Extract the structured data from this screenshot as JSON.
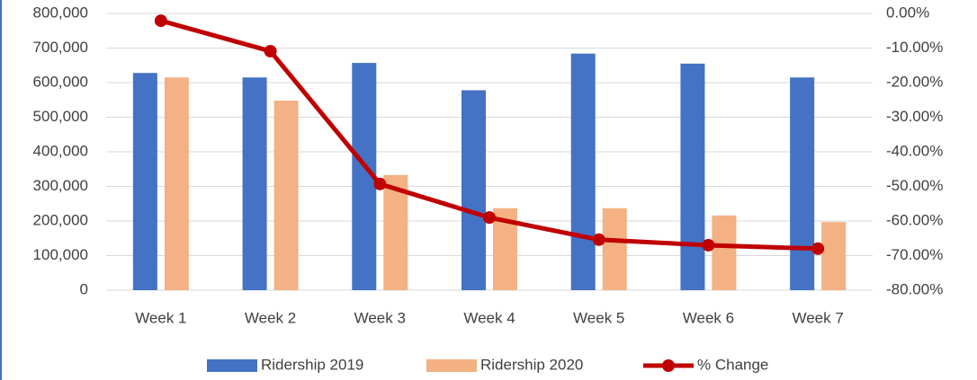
{
  "chart_data": {
    "type": "bar",
    "categories": [
      "Week 1",
      "Week 2",
      "Week 3",
      "Week 4",
      "Week 5",
      "Week 6",
      "Week 7"
    ],
    "series": [
      {
        "name": "Ridership 2019",
        "type": "bar",
        "color": "#4472c4",
        "values": [
          628000,
          615000,
          657000,
          578000,
          684000,
          655000,
          615000
        ]
      },
      {
        "name": "Ridership 2020",
        "type": "bar",
        "color": "#f4b183",
        "values": [
          615000,
          548000,
          333000,
          237000,
          237000,
          216000,
          197000
        ]
      },
      {
        "name": "% Change",
        "type": "line",
        "axis": "y2",
        "color": "#c00000",
        "values": [
          -2.1,
          -10.9,
          -49.3,
          -59.0,
          -65.4,
          -67.0,
          -68.0
        ]
      }
    ],
    "ylim": [
      0,
      800000
    ],
    "yticks": [
      0,
      {
        "value": 100000,
        "label": "100,000"
      },
      {
        "value": 200000,
        "label": "200,000"
      },
      {
        "value": 300000,
        "label": "300,000"
      },
      {
        "value": 400000,
        "label": "400,000"
      },
      {
        "value": 500000,
        "label": "500,000"
      },
      {
        "value": 600000,
        "label": "600,000"
      },
      {
        "value": 700000,
        "label": "700,000"
      },
      {
        "value": 800000,
        "label": "800,000"
      }
    ],
    "y2lim": [
      -80,
      0
    ],
    "y2ticks": [
      {
        "value": -80,
        "label": "-80.00%"
      },
      {
        "value": -70,
        "label": "-70.00%"
      },
      {
        "value": -60,
        "label": "-60.00%"
      },
      {
        "value": -50,
        "label": "-50.00%"
      },
      {
        "value": -40,
        "label": "-40.00%"
      },
      {
        "value": -30,
        "label": "-30.00%"
      },
      {
        "value": -20,
        "label": "-20.00%"
      },
      {
        "value": -10,
        "label": "-10.00%"
      },
      {
        "value": 0,
        "label": "0.00%"
      }
    ],
    "grid": true,
    "legend": "bottom"
  }
}
